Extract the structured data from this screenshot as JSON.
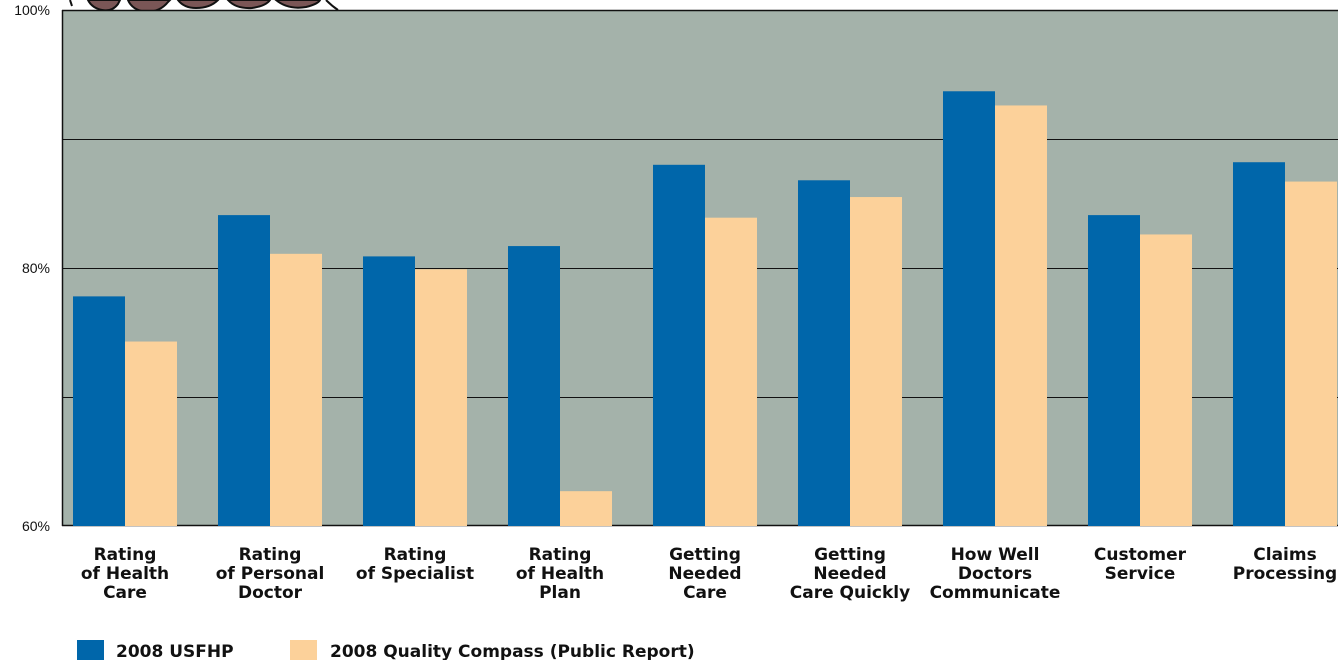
{
  "chart_data": {
    "type": "bar",
    "categories": [
      [
        "Rating",
        "of Health",
        "Care"
      ],
      [
        "Rating",
        "of Personal",
        "Doctor"
      ],
      [
        "Rating",
        "of Specialist"
      ],
      [
        "Rating",
        "of Health",
        "Plan"
      ],
      [
        "Getting",
        "Needed",
        "Care"
      ],
      [
        "Getting",
        "Needed",
        "Care Quickly"
      ],
      [
        "How Well",
        "Doctors",
        "Communicate"
      ],
      [
        "Customer",
        "Service"
      ],
      [
        "Claims",
        "Processing"
      ]
    ],
    "series": [
      {
        "name": "2008 USFHP",
        "color": "#0066aa",
        "values": [
          77.8,
          84.1,
          80.9,
          81.7,
          88.0,
          86.8,
          93.7,
          84.1,
          88.2
        ]
      },
      {
        "name": "2008 Quality Compass (Public Report)",
        "color": "#fcd19a",
        "values": [
          74.3,
          81.1,
          79.9,
          62.7,
          83.9,
          85.5,
          92.6,
          82.6,
          86.7
        ]
      }
    ],
    "yticks": [
      "100%",
      "80%",
      "60%"
    ],
    "ytick_values": [
      100,
      80,
      60
    ],
    "ylim": [
      60,
      100
    ],
    "gridlines": [
      70,
      80,
      90
    ],
    "plot_background": "#a4b2aa",
    "grid": true,
    "legend_position": "bottom-left",
    "title": "",
    "xlabel": "",
    "ylabel": ""
  }
}
